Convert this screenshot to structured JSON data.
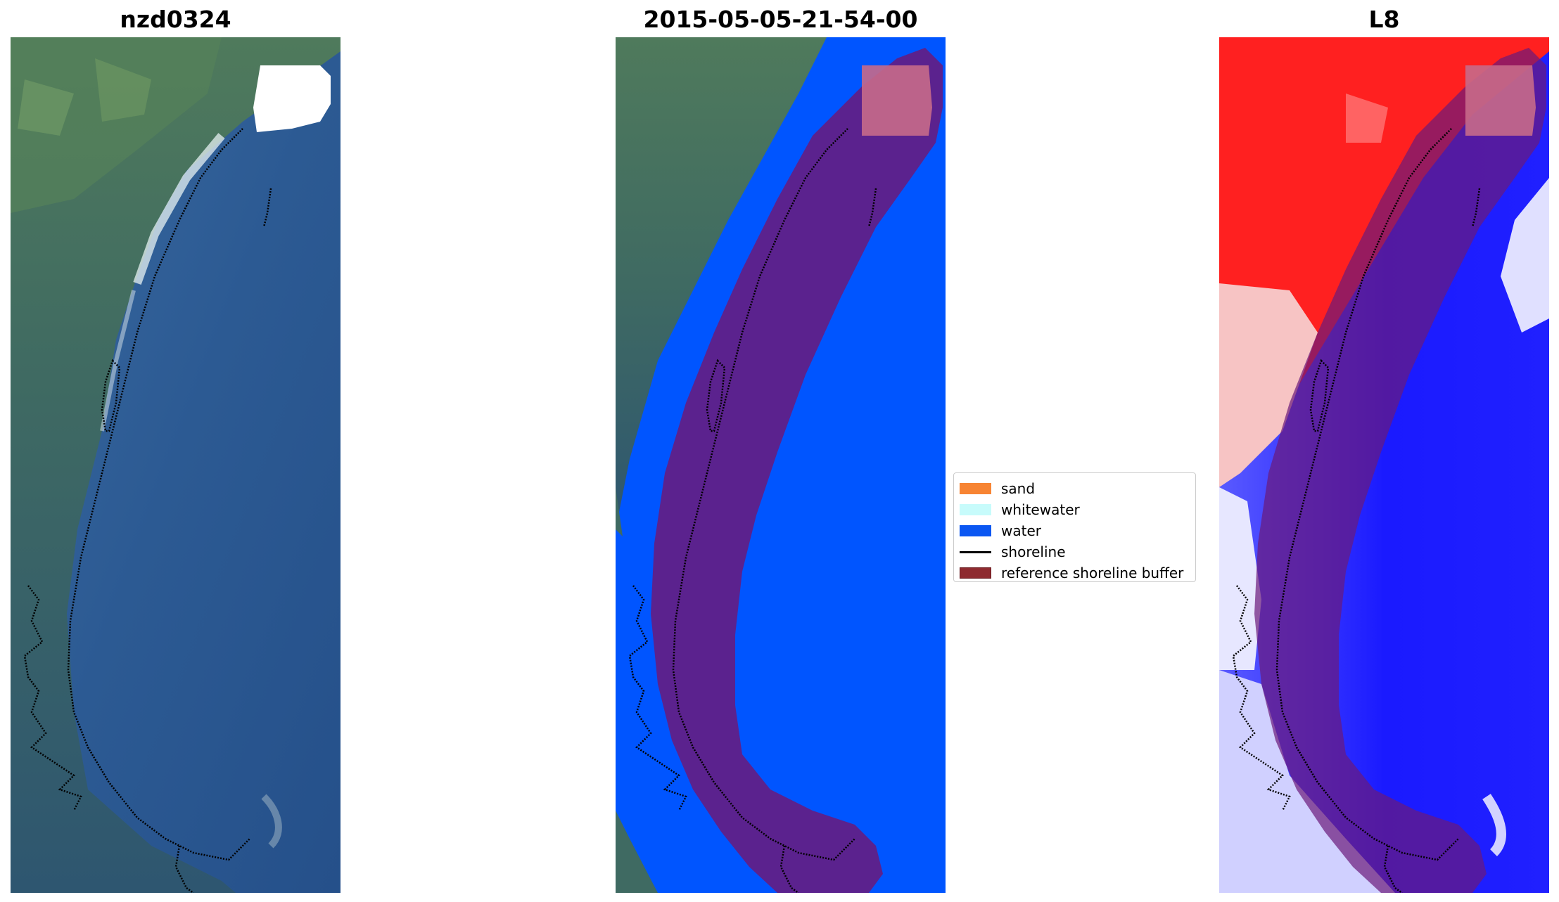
{
  "panels": [
    {
      "title": "nzd0324",
      "kind": "rgb"
    },
    {
      "title": "2015-05-05-21-54-00",
      "kind": "classified"
    },
    {
      "title": "L8",
      "kind": "index"
    }
  ],
  "legend": {
    "items": [
      {
        "label": "sand",
        "type": "patch",
        "color": "#f78433"
      },
      {
        "label": "whitewater",
        "type": "patch",
        "color": "#c7fbfb"
      },
      {
        "label": "water",
        "type": "patch",
        "color": "#0b57f2"
      },
      {
        "label": "shoreline",
        "type": "line",
        "color": "#000000"
      },
      {
        "label": "reference shoreline buffer",
        "type": "patch",
        "color": "#8e2a2f"
      }
    ]
  },
  "colors": {
    "land": "#3f6b5c",
    "ocean": "#2d5a92",
    "water_class": "#0055ff",
    "buffer": "#6b1a7a",
    "index_land": "#ff1a1a",
    "index_water": "#1a1aff",
    "cloud_mask": "#ffffff"
  }
}
